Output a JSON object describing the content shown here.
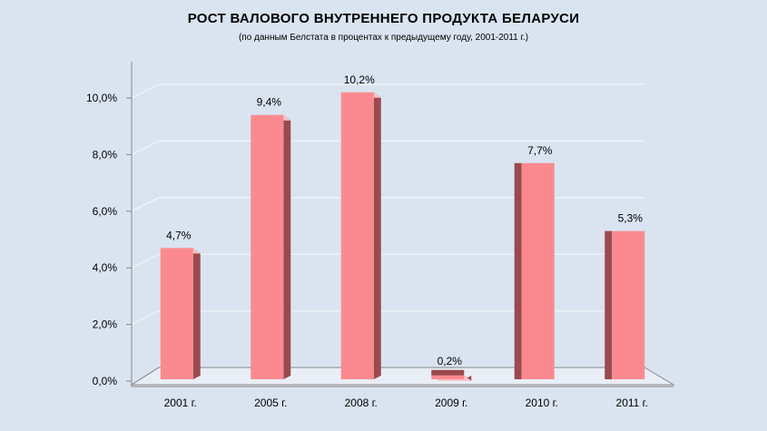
{
  "chart_data": {
    "type": "bar",
    "title": "РОСТ ВАЛОВОГО  ВНУТРЕННЕГО  ПРОДУКТА БЕЛАРУСИ",
    "subtitle": "(по данным Белстата в процентах к предыдущему году, 2001-2011 г.)",
    "categories": [
      "2001  г.",
      "2005  г.",
      "2008  г.",
      "2009  г.",
      "2010  г.",
      "2011  г."
    ],
    "values": [
      4.7,
      9.4,
      10.2,
      0.2,
      7.7,
      5.3
    ],
    "data_labels": [
      "4,7%",
      "9,4%",
      "10,2%",
      "0,2%",
      "7,7%",
      "5,3%"
    ],
    "y_ticks": [
      "0,0%",
      "2,0%",
      "4,0%",
      "6,0%",
      "8,0%",
      "10,0%"
    ],
    "ylim": [
      0,
      10
    ],
    "xlabel": "",
    "ylabel": "",
    "grid": true,
    "three_d": true,
    "colors": {
      "bar_front": "#fb8a90",
      "bar_side": "#9a4a4f",
      "bar_top": "#f7c0c4",
      "grid": "#eef1f6",
      "axis": "#888888"
    }
  }
}
